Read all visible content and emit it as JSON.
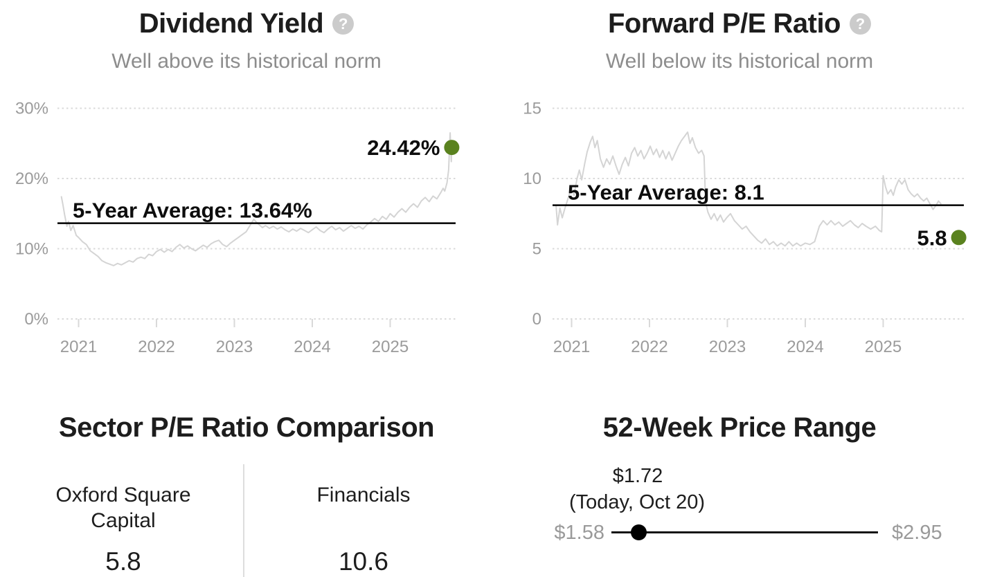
{
  "colors": {
    "background": "#ffffff",
    "current_dot": "#5a821f",
    "data_line": "#d4d4d4",
    "average_line": "#000000",
    "muted_text": "#8d8d8d",
    "axis_text": "#9b9b9b",
    "help_icon_bg": "#cbcbcb"
  },
  "icons": {
    "help_glyph": "?"
  },
  "dividend_yield": {
    "title": "Dividend Yield",
    "subtitle": "Well above its historical norm"
  },
  "forward_pe": {
    "title": "Forward P/E Ratio",
    "subtitle": "Well below its historical norm"
  },
  "sector_comparison": {
    "title": "Sector P/E Ratio Comparison",
    "columns": [
      {
        "name": "Oxford Square Capital",
        "value": "5.8"
      },
      {
        "name": "Financials",
        "value": "10.6"
      }
    ]
  },
  "price_range": {
    "title": "52-Week Price Range",
    "current_label": "$1.72",
    "current_sublabel": "(Today, Oct 20)",
    "low_label": "$1.58",
    "high_label": "$2.95",
    "low": 1.58,
    "high": 2.95,
    "current": 1.72
  },
  "chart_data": [
    {
      "type": "line",
      "title": "Dividend Yield",
      "subtitle": "Well above its historical norm",
      "unit": "%",
      "x_ticks": [
        2021,
        2022,
        2023,
        2024,
        2025
      ],
      "y_ticks": [
        0,
        10,
        20,
        30
      ],
      "y_tick_labels": [
        "0%",
        "10%",
        "20%",
        "30%"
      ],
      "ylim": [
        0,
        30
      ],
      "xlim": [
        2020.78,
        2025.98
      ],
      "grid_x": [
        83,
        658
      ],
      "grid": true,
      "legend": "none",
      "average": {
        "value": 13.64,
        "label": "5-Year Average: 13.64%"
      },
      "current": {
        "value": 24.42,
        "label": "24.42%",
        "x": 2025.79
      },
      "series": [
        {
          "name": "Dividend Yield (%)",
          "points": [
            [
              2020.78,
              17.4
            ],
            [
              2020.8,
              16.2
            ],
            [
              2020.82,
              14.9
            ],
            [
              2020.85,
              13.2
            ],
            [
              2020.87,
              13.9
            ],
            [
              2020.9,
              12.6
            ],
            [
              2020.93,
              13.3
            ],
            [
              2020.97,
              11.9
            ],
            [
              2021.0,
              11.6
            ],
            [
              2021.05,
              11.0
            ],
            [
              2021.1,
              10.6
            ],
            [
              2021.15,
              9.7
            ],
            [
              2021.2,
              9.3
            ],
            [
              2021.25,
              8.9
            ],
            [
              2021.3,
              8.3
            ],
            [
              2021.35,
              8.0
            ],
            [
              2021.4,
              7.8
            ],
            [
              2021.45,
              7.6
            ],
            [
              2021.5,
              7.9
            ],
            [
              2021.55,
              7.7
            ],
            [
              2021.6,
              8.0
            ],
            [
              2021.65,
              8.3
            ],
            [
              2021.7,
              8.1
            ],
            [
              2021.75,
              8.6
            ],
            [
              2021.8,
              8.8
            ],
            [
              2021.85,
              8.6
            ],
            [
              2021.9,
              9.2
            ],
            [
              2021.95,
              9.0
            ],
            [
              2022.0,
              9.6
            ],
            [
              2022.05,
              9.9
            ],
            [
              2022.1,
              9.5
            ],
            [
              2022.15,
              9.9
            ],
            [
              2022.2,
              9.6
            ],
            [
              2022.25,
              10.2
            ],
            [
              2022.3,
              10.6
            ],
            [
              2022.35,
              10.1
            ],
            [
              2022.4,
              10.4
            ],
            [
              2022.45,
              10.0
            ],
            [
              2022.5,
              9.7
            ],
            [
              2022.55,
              10.1
            ],
            [
              2022.6,
              10.5
            ],
            [
              2022.65,
              10.2
            ],
            [
              2022.7,
              10.7
            ],
            [
              2022.75,
              11.0
            ],
            [
              2022.8,
              11.2
            ],
            [
              2022.85,
              10.6
            ],
            [
              2022.9,
              10.3
            ],
            [
              2022.95,
              10.8
            ],
            [
              2023.0,
              11.2
            ],
            [
              2023.05,
              11.6
            ],
            [
              2023.1,
              12.0
            ],
            [
              2023.15,
              12.4
            ],
            [
              2023.2,
              13.3
            ],
            [
              2023.25,
              14.2
            ],
            [
              2023.28,
              13.8
            ],
            [
              2023.32,
              13.4
            ],
            [
              2023.36,
              13.0
            ],
            [
              2023.4,
              13.3
            ],
            [
              2023.45,
              12.9
            ],
            [
              2023.5,
              13.2
            ],
            [
              2023.55,
              12.8
            ],
            [
              2023.6,
              13.1
            ],
            [
              2023.65,
              12.7
            ],
            [
              2023.7,
              12.4
            ],
            [
              2023.75,
              12.8
            ],
            [
              2023.8,
              12.5
            ],
            [
              2023.85,
              12.9
            ],
            [
              2023.9,
              12.6
            ],
            [
              2023.95,
              12.3
            ],
            [
              2024.0,
              12.7
            ],
            [
              2024.05,
              13.1
            ],
            [
              2024.1,
              12.6
            ],
            [
              2024.15,
              12.3
            ],
            [
              2024.2,
              12.8
            ],
            [
              2024.25,
              13.2
            ],
            [
              2024.3,
              12.7
            ],
            [
              2024.35,
              13.0
            ],
            [
              2024.4,
              12.5
            ],
            [
              2024.45,
              12.9
            ],
            [
              2024.5,
              13.3
            ],
            [
              2024.55,
              12.9
            ],
            [
              2024.6,
              13.2
            ],
            [
              2024.65,
              12.8
            ],
            [
              2024.7,
              13.4
            ],
            [
              2024.75,
              13.8
            ],
            [
              2024.8,
              14.3
            ],
            [
              2024.85,
              13.9
            ],
            [
              2024.9,
              14.6
            ],
            [
              2024.95,
              14.2
            ],
            [
              2025.0,
              15.0
            ],
            [
              2025.05,
              14.5
            ],
            [
              2025.1,
              15.2
            ],
            [
              2025.15,
              15.7
            ],
            [
              2025.2,
              15.2
            ],
            [
              2025.25,
              15.9
            ],
            [
              2025.3,
              16.4
            ],
            [
              2025.35,
              15.9
            ],
            [
              2025.4,
              16.8
            ],
            [
              2025.45,
              17.3
            ],
            [
              2025.5,
              16.7
            ],
            [
              2025.55,
              17.5
            ],
            [
              2025.6,
              17.1
            ],
            [
              2025.65,
              18.0
            ],
            [
              2025.68,
              18.6
            ],
            [
              2025.7,
              18.2
            ],
            [
              2025.73,
              19.4
            ],
            [
              2025.75,
              21.2
            ],
            [
              2025.77,
              26.5
            ],
            [
              2025.785,
              22.4
            ],
            [
              2025.79,
              24.42
            ]
          ]
        }
      ]
    },
    {
      "type": "line",
      "title": "Forward P/E Ratio",
      "subtitle": "Well below its historical norm",
      "unit": "x",
      "x_ticks": [
        2021,
        2022,
        2023,
        2024,
        2025
      ],
      "y_ticks": [
        0,
        5,
        10,
        15
      ],
      "y_tick_labels": [
        "0",
        "5",
        "10",
        "15"
      ],
      "ylim": [
        0,
        15
      ],
      "xlim": [
        2020.78,
        2025.98
      ],
      "grid_x": [
        86,
        680
      ],
      "grid": true,
      "legend": "none",
      "average": {
        "value": 8.1,
        "label": "5-Year Average: 8.1"
      },
      "current": {
        "value": 5.8,
        "label": "5.8",
        "x": 2025.97
      },
      "series": [
        {
          "name": "Forward P/E",
          "points": [
            [
              2020.8,
              8.1
            ],
            [
              2020.82,
              6.7
            ],
            [
              2020.85,
              7.9
            ],
            [
              2020.88,
              7.2
            ],
            [
              2020.91,
              7.8
            ],
            [
              2020.95,
              8.5
            ],
            [
              2021.0,
              9.4
            ],
            [
              2021.03,
              8.8
            ],
            [
              2021.07,
              10.0
            ],
            [
              2021.1,
              10.6
            ],
            [
              2021.13,
              9.9
            ],
            [
              2021.17,
              11.1
            ],
            [
              2021.2,
              11.9
            ],
            [
              2021.24,
              12.6
            ],
            [
              2021.27,
              13.0
            ],
            [
              2021.3,
              12.2
            ],
            [
              2021.33,
              12.7
            ],
            [
              2021.37,
              11.4
            ],
            [
              2021.41,
              10.8
            ],
            [
              2021.45,
              11.4
            ],
            [
              2021.49,
              11.0
            ],
            [
              2021.53,
              11.6
            ],
            [
              2021.57,
              10.9
            ],
            [
              2021.61,
              10.3
            ],
            [
              2021.65,
              11.0
            ],
            [
              2021.69,
              11.5
            ],
            [
              2021.73,
              10.9
            ],
            [
              2021.77,
              11.8
            ],
            [
              2021.81,
              12.2
            ],
            [
              2021.85,
              11.6
            ],
            [
              2021.89,
              12.0
            ],
            [
              2021.93,
              11.4
            ],
            [
              2021.97,
              11.8
            ],
            [
              2022.01,
              12.3
            ],
            [
              2022.05,
              11.7
            ],
            [
              2022.09,
              12.1
            ],
            [
              2022.13,
              11.5
            ],
            [
              2022.17,
              12.0
            ],
            [
              2022.21,
              11.4
            ],
            [
              2022.25,
              11.9
            ],
            [
              2022.29,
              11.3
            ],
            [
              2022.33,
              11.8
            ],
            [
              2022.37,
              12.3
            ],
            [
              2022.41,
              12.7
            ],
            [
              2022.45,
              13.0
            ],
            [
              2022.49,
              13.3
            ],
            [
              2022.52,
              12.5
            ],
            [
              2022.55,
              12.9
            ],
            [
              2022.59,
              12.2
            ],
            [
              2022.63,
              11.8
            ],
            [
              2022.67,
              12.0
            ],
            [
              2022.7,
              11.6
            ],
            [
              2022.72,
              8.3
            ],
            [
              2022.75,
              7.6
            ],
            [
              2022.79,
              7.1
            ],
            [
              2022.83,
              7.5
            ],
            [
              2022.87,
              7.0
            ],
            [
              2022.91,
              7.4
            ],
            [
              2022.95,
              6.9
            ],
            [
              2022.99,
              7.2
            ],
            [
              2023.04,
              7.5
            ],
            [
              2023.09,
              7.0
            ],
            [
              2023.14,
              6.7
            ],
            [
              2023.19,
              6.4
            ],
            [
              2023.24,
              6.6
            ],
            [
              2023.29,
              6.2
            ],
            [
              2023.34,
              5.9
            ],
            [
              2023.39,
              5.6
            ],
            [
              2023.44,
              5.4
            ],
            [
              2023.49,
              5.7
            ],
            [
              2023.54,
              5.3
            ],
            [
              2023.59,
              5.5
            ],
            [
              2023.64,
              5.2
            ],
            [
              2023.69,
              5.4
            ],
            [
              2023.74,
              5.2
            ],
            [
              2023.79,
              5.5
            ],
            [
              2023.84,
              5.2
            ],
            [
              2023.89,
              5.4
            ],
            [
              2023.94,
              5.2
            ],
            [
              2024.0,
              5.4
            ],
            [
              2024.06,
              5.3
            ],
            [
              2024.12,
              5.5
            ],
            [
              2024.18,
              6.6
            ],
            [
              2024.23,
              7.0
            ],
            [
              2024.28,
              6.7
            ],
            [
              2024.33,
              7.0
            ],
            [
              2024.38,
              6.7
            ],
            [
              2024.43,
              6.9
            ],
            [
              2024.48,
              6.6
            ],
            [
              2024.53,
              6.8
            ],
            [
              2024.58,
              7.0
            ],
            [
              2024.63,
              6.7
            ],
            [
              2024.68,
              6.5
            ],
            [
              2024.73,
              6.8
            ],
            [
              2024.78,
              6.6
            ],
            [
              2024.84,
              6.4
            ],
            [
              2024.9,
              6.6
            ],
            [
              2024.95,
              6.3
            ],
            [
              2024.98,
              6.2
            ],
            [
              2025.0,
              10.2
            ],
            [
              2025.03,
              9.4
            ],
            [
              2025.06,
              8.9
            ],
            [
              2025.1,
              9.2
            ],
            [
              2025.13,
              8.8
            ],
            [
              2025.16,
              9.4
            ],
            [
              2025.2,
              9.9
            ],
            [
              2025.24,
              9.6
            ],
            [
              2025.28,
              9.9
            ],
            [
              2025.32,
              9.2
            ],
            [
              2025.36,
              8.9
            ],
            [
              2025.4,
              8.7
            ],
            [
              2025.44,
              8.9
            ],
            [
              2025.48,
              8.6
            ],
            [
              2025.52,
              8.4
            ],
            [
              2025.56,
              8.6
            ],
            [
              2025.6,
              8.2
            ],
            [
              2025.64,
              7.8
            ],
            [
              2025.68,
              8.1
            ],
            [
              2025.71,
              8.4
            ],
            [
              2025.74,
              8.2
            ]
          ]
        }
      ]
    }
  ]
}
